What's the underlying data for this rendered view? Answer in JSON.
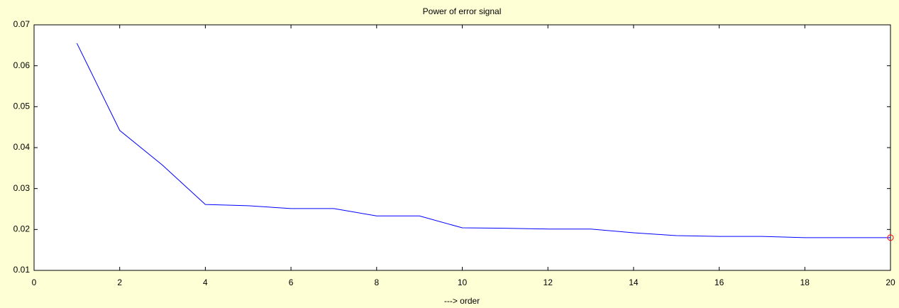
{
  "chart_data": {
    "type": "line",
    "title": "Power of error signal",
    "x_label": "---> order",
    "x": [
      1,
      2,
      3,
      4,
      5,
      6,
      7,
      8,
      9,
      10,
      11,
      12,
      13,
      14,
      15,
      16,
      17,
      18,
      19,
      20
    ],
    "series": [
      {
        "color": "#0000ff",
        "marker_color": "#ff0000",
        "values": [
          0.0655,
          0.0442,
          0.0357,
          0.0261,
          0.0258,
          0.0251,
          0.0251,
          0.0233,
          0.0233,
          0.0204,
          0.0203,
          0.0201,
          0.0201,
          0.0192,
          0.0185,
          0.0183,
          0.0183,
          0.018,
          0.018,
          0.018
        ]
      }
    ],
    "xlim": [
      0,
      20
    ],
    "xticks": [
      0,
      2,
      4,
      6,
      8,
      10,
      12,
      14,
      16,
      18,
      20
    ],
    "ylim": [
      0.01,
      0.07
    ],
    "yticks": [
      0.01,
      0.02,
      0.03,
      0.04,
      0.05,
      0.06,
      0.07
    ]
  }
}
